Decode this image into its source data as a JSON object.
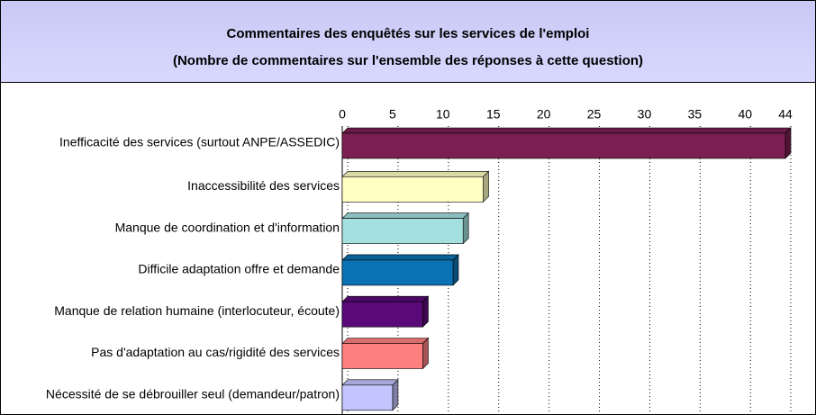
{
  "chart_data": {
    "type": "bar",
    "orientation": "horizontal",
    "title": "Commentaires des enquêtés sur les services de l'emploi",
    "subtitle": "(Nombre de commentaires sur l'ensemble des réponses à cette question)",
    "categories": [
      "Inefficacité des services (surtout ANPE/ASSEDIC)",
      "Inaccessibilité des services",
      "Manque de coordination et d'information",
      "Difficile adaptation offre et demande",
      "Manque de relation humaine (interlocuteur, écoute)",
      "Pas d'adaptation au cas/rigidité des services",
      "Nécessité de se débrouiller seul (demandeur/patron)"
    ],
    "values": [
      44,
      14,
      12,
      11,
      8,
      8,
      5
    ],
    "colors": [
      "#7b1f52",
      "#ffffc4",
      "#a3e0df",
      "#0a72b2",
      "#5a0a78",
      "#ff8080",
      "#c4c4ff"
    ],
    "xlim": [
      0,
      44
    ],
    "xticks": [
      0,
      5,
      10,
      15,
      20,
      25,
      30,
      35,
      40,
      44
    ],
    "grid": true
  }
}
